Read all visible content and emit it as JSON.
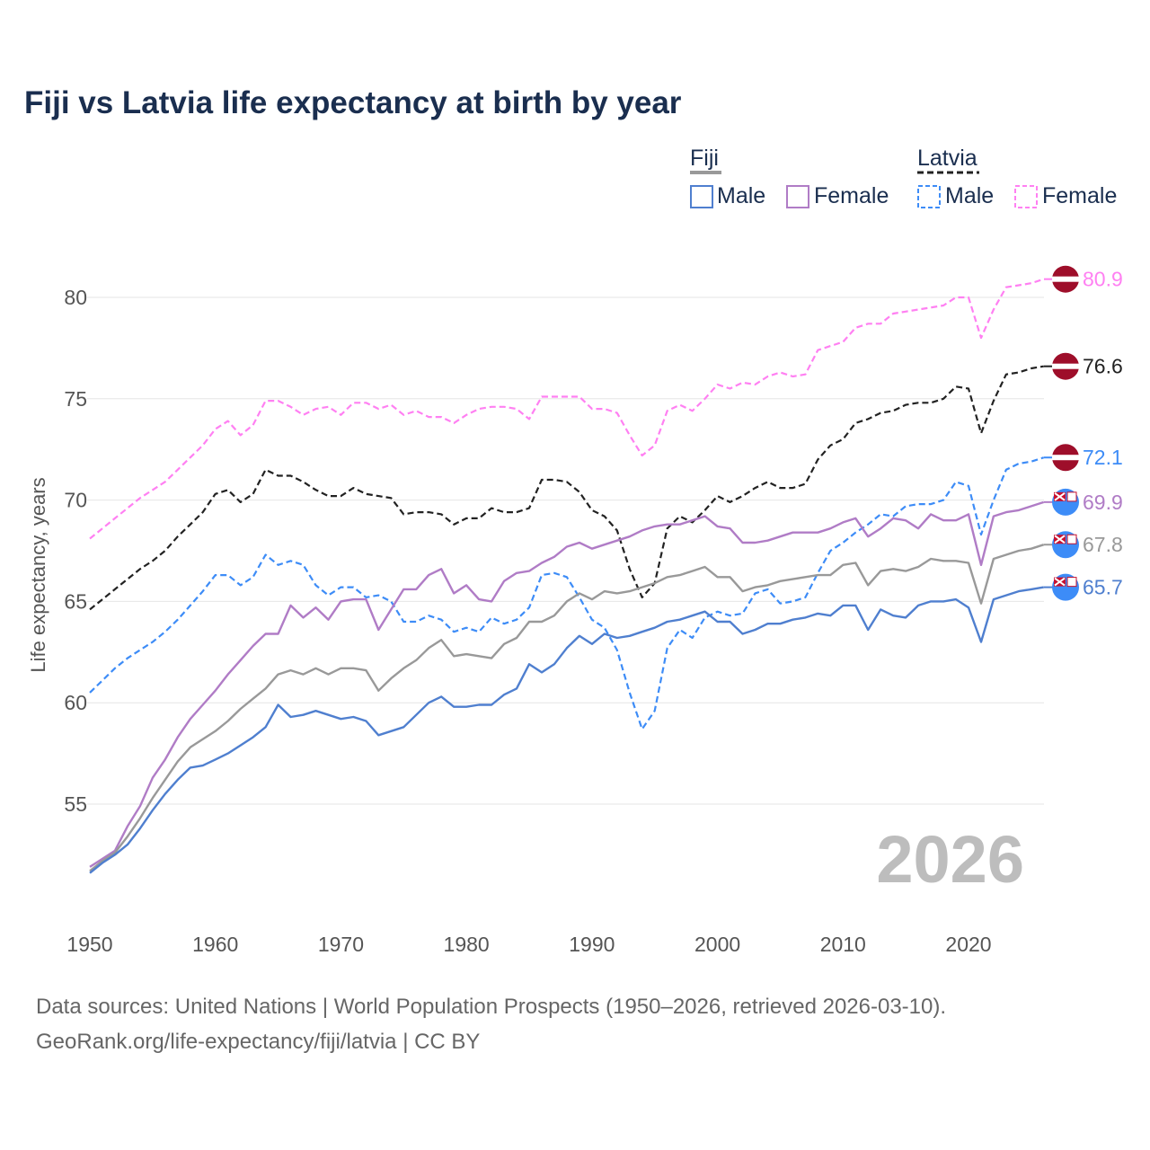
{
  "chart_data": {
    "type": "line",
    "title": "Fiji vs Latvia life expectancy at birth by year",
    "ylabel": "Life expectancy, years",
    "xlabel": "",
    "xlim": [
      1950,
      2026
    ],
    "ylim": [
      50.5,
      82.5
    ],
    "xticks": [
      1950,
      1960,
      1970,
      1980,
      1990,
      2000,
      2010,
      2020
    ],
    "yticks": [
      55,
      60,
      65,
      70,
      75,
      80
    ],
    "grid": true,
    "watermark_year": "2026",
    "legend": {
      "placement": "top-right",
      "groups": [
        {
          "name": "Fiji",
          "entries": [
            "Male",
            "Female"
          ]
        },
        {
          "name": "Latvia",
          "entries": [
            "Male",
            "Female"
          ]
        }
      ]
    },
    "x_start": 1950,
    "series": [
      {
        "name": "Latvia Female",
        "country": "Latvia",
        "color": "#ff80f2",
        "dashed": true,
        "end_label": "80.9",
        "flag": "latvia",
        "values": [
          68.1,
          68.6,
          69.1,
          69.6,
          70.1,
          70.5,
          70.9,
          71.5,
          72.1,
          72.7,
          73.5,
          73.9,
          73.2,
          73.7,
          74.9,
          74.9,
          74.6,
          74.2,
          74.5,
          74.6,
          74.2,
          74.8,
          74.8,
          74.5,
          74.7,
          74.2,
          74.4,
          74.1,
          74.1,
          73.8,
          74.2,
          74.5,
          74.6,
          74.6,
          74.5,
          74.0,
          75.1,
          75.1,
          75.1,
          75.1,
          74.5,
          74.5,
          74.3,
          73.2,
          72.2,
          72.7,
          74.4,
          74.7,
          74.4,
          75.0,
          75.7,
          75.5,
          75.8,
          75.7,
          76.1,
          76.3,
          76.1,
          76.2,
          77.4,
          77.6,
          77.8,
          78.5,
          78.7,
          78.7,
          79.2,
          79.3,
          79.4,
          79.5,
          79.6,
          80.0,
          80.0,
          78.0,
          79.4,
          80.5,
          80.6,
          80.7,
          80.9
        ]
      },
      {
        "name": "Latvia",
        "country": "Latvia",
        "color": "#222222",
        "dashed": true,
        "end_label": "76.6",
        "flag": "latvia",
        "values": [
          64.6,
          65.1,
          65.6,
          66.1,
          66.6,
          67.0,
          67.5,
          68.2,
          68.8,
          69.4,
          70.3,
          70.5,
          69.9,
          70.3,
          71.5,
          71.2,
          71.2,
          70.9,
          70.5,
          70.2,
          70.2,
          70.6,
          70.3,
          70.2,
          70.1,
          69.3,
          69.4,
          69.4,
          69.3,
          68.8,
          69.1,
          69.1,
          69.6,
          69.4,
          69.4,
          69.6,
          71.0,
          71.0,
          70.9,
          70.4,
          69.5,
          69.2,
          68.5,
          66.6,
          65.2,
          65.9,
          68.6,
          69.2,
          68.9,
          69.5,
          70.2,
          69.9,
          70.2,
          70.6,
          70.9,
          70.6,
          70.6,
          70.8,
          72.0,
          72.7,
          73.0,
          73.8,
          74.0,
          74.3,
          74.4,
          74.7,
          74.8,
          74.8,
          75.0,
          75.6,
          75.5,
          73.3,
          74.9,
          76.2,
          76.3,
          76.5,
          76.6
        ]
      },
      {
        "name": "Latvia Male",
        "country": "Latvia",
        "color": "#3d8cf7",
        "dashed": true,
        "end_label": "72.1",
        "flag": "latvia",
        "values": [
          60.5,
          61.1,
          61.7,
          62.2,
          62.6,
          63.0,
          63.5,
          64.1,
          64.8,
          65.5,
          66.3,
          66.3,
          65.8,
          66.2,
          67.3,
          66.8,
          67.0,
          66.8,
          65.8,
          65.3,
          65.7,
          65.7,
          65.2,
          65.3,
          65.0,
          64.0,
          64.0,
          64.3,
          64.1,
          63.5,
          63.7,
          63.5,
          64.2,
          63.9,
          64.1,
          64.7,
          66.3,
          66.4,
          66.2,
          65.2,
          64.1,
          63.7,
          62.6,
          60.5,
          58.7,
          59.6,
          62.7,
          63.6,
          63.2,
          64.2,
          64.5,
          64.3,
          64.4,
          65.4,
          65.6,
          64.9,
          65.0,
          65.2,
          66.4,
          67.5,
          67.9,
          68.4,
          68.8,
          69.3,
          69.2,
          69.7,
          69.8,
          69.8,
          70.0,
          70.9,
          70.7,
          68.3,
          70.0,
          71.5,
          71.8,
          71.9,
          72.1
        ]
      },
      {
        "name": "Fiji Female",
        "country": "Fiji",
        "color": "#b07cc6",
        "dashed": false,
        "end_label": "69.9",
        "flag": "fiji",
        "values": [
          51.9,
          52.3,
          52.7,
          53.9,
          54.9,
          56.3,
          57.2,
          58.3,
          59.2,
          59.9,
          60.6,
          61.4,
          62.1,
          62.8,
          63.4,
          63.4,
          64.8,
          64.2,
          64.7,
          64.1,
          65.0,
          65.1,
          65.1,
          63.6,
          64.6,
          65.6,
          65.6,
          66.3,
          66.6,
          65.4,
          65.8,
          65.1,
          65.0,
          66.0,
          66.4,
          66.5,
          66.9,
          67.2,
          67.7,
          67.9,
          67.6,
          67.8,
          68.0,
          68.2,
          68.5,
          68.7,
          68.8,
          68.8,
          69.0,
          69.2,
          68.7,
          68.6,
          67.9,
          67.9,
          68.0,
          68.2,
          68.4,
          68.4,
          68.4,
          68.6,
          68.9,
          69.1,
          68.2,
          68.6,
          69.1,
          69.0,
          68.6,
          69.3,
          69.0,
          69.0,
          69.3,
          66.8,
          69.2,
          69.4,
          69.5,
          69.7,
          69.9
        ]
      },
      {
        "name": "Fiji",
        "country": "Fiji",
        "color": "#999999",
        "dashed": false,
        "end_label": "67.8",
        "flag": "fiji",
        "values": [
          51.7,
          52.2,
          52.6,
          53.4,
          54.3,
          55.3,
          56.2,
          57.1,
          57.8,
          58.2,
          58.6,
          59.1,
          59.7,
          60.2,
          60.7,
          61.4,
          61.6,
          61.4,
          61.7,
          61.4,
          61.7,
          61.7,
          61.6,
          60.6,
          61.2,
          61.7,
          62.1,
          62.7,
          63.1,
          62.3,
          62.4,
          62.3,
          62.2,
          62.9,
          63.2,
          64.0,
          64.0,
          64.3,
          65.0,
          65.4,
          65.1,
          65.5,
          65.4,
          65.5,
          65.7,
          65.9,
          66.2,
          66.3,
          66.5,
          66.7,
          66.2,
          66.2,
          65.5,
          65.7,
          65.8,
          66.0,
          66.1,
          66.2,
          66.3,
          66.3,
          66.8,
          66.9,
          65.8,
          66.5,
          66.6,
          66.5,
          66.7,
          67.1,
          67.0,
          67.0,
          66.9,
          64.9,
          67.1,
          67.3,
          67.5,
          67.6,
          67.8
        ]
      },
      {
        "name": "Fiji Male",
        "country": "Fiji",
        "color": "#4f7fcf",
        "dashed": false,
        "end_label": "65.7",
        "flag": "fiji",
        "values": [
          51.6,
          52.1,
          52.5,
          53.0,
          53.8,
          54.7,
          55.5,
          56.2,
          56.8,
          56.9,
          57.2,
          57.5,
          57.9,
          58.3,
          58.8,
          59.9,
          59.3,
          59.4,
          59.6,
          59.4,
          59.2,
          59.3,
          59.1,
          58.4,
          58.6,
          58.8,
          59.4,
          60.0,
          60.3,
          59.8,
          59.8,
          59.9,
          59.9,
          60.4,
          60.7,
          61.9,
          61.5,
          61.9,
          62.7,
          63.3,
          62.9,
          63.4,
          63.2,
          63.3,
          63.5,
          63.7,
          64.0,
          64.1,
          64.3,
          64.5,
          64.0,
          64.0,
          63.4,
          63.6,
          63.9,
          63.9,
          64.1,
          64.2,
          64.4,
          64.3,
          64.8,
          64.8,
          63.6,
          64.6,
          64.3,
          64.2,
          64.8,
          65.0,
          65.0,
          65.1,
          64.7,
          63.0,
          65.1,
          65.3,
          65.5,
          65.6,
          65.7
        ]
      }
    ]
  },
  "colors": {
    "latvia_flag": "#9e0e2a",
    "fiji_flag": "#3d8cf7"
  },
  "source": {
    "line1": "Data sources: United Nations | World Population Prospects (1950–2026, retrieved 2026-03-10).",
    "line2": "GeoRank.org/life-expectancy/fiji/latvia | CC BY"
  }
}
